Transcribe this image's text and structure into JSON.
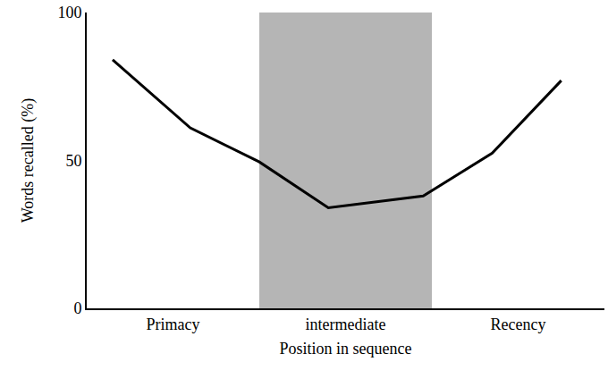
{
  "chart_data": {
    "type": "line",
    "x_label": "Position in sequence",
    "y_label": "Words recalled (%)",
    "x": [
      0.65,
      1.1,
      1.5,
      1.9,
      2.45,
      2.85,
      3.25
    ],
    "values": [
      84,
      61,
      49.5,
      34,
      38,
      52.5,
      77
    ],
    "color": "#000000",
    "xlim": [
      0.5,
      3.5
    ],
    "xticks": [
      {
        "value": 1,
        "label": "Primacy"
      },
      {
        "value": 2,
        "label": "intermediate"
      },
      {
        "value": 3,
        "label": "Recency"
      }
    ],
    "ylim": [
      0,
      100
    ],
    "yticks": [
      0,
      50,
      100
    ],
    "shaded_x": [
      1.5,
      2.5
    ],
    "grid": false
  }
}
